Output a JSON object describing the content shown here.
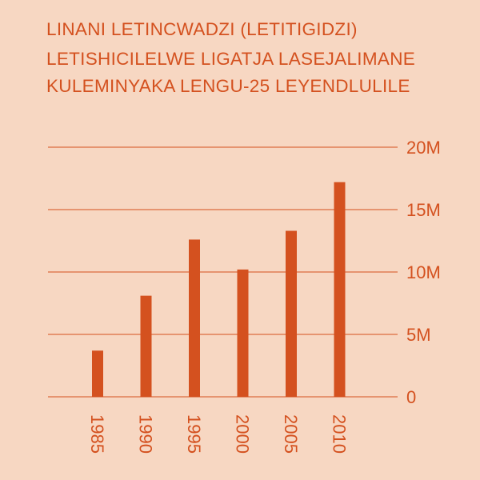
{
  "chart_data": {
    "type": "bar",
    "title_lines": [
      "LINANI LETINCWADZI (LETITIGIDZI)",
      "LETISHICILELWE LIGATJA LASEJALIMANE",
      "KULEMINYAKA LENGU-25 LEYENDLULILE"
    ],
    "categories": [
      "1985",
      "1990",
      "1995",
      "2000",
      "2005",
      "2010"
    ],
    "values": [
      3.7,
      8.1,
      12.6,
      10.2,
      13.3,
      17.2
    ],
    "ylim": [
      0,
      20
    ],
    "y_ticks": [
      0,
      5,
      10,
      15,
      20
    ],
    "y_tick_labels": [
      "0",
      "5M",
      "10M",
      "15M",
      "20M"
    ],
    "y_axis_position": "right",
    "x_tick_rotation": "vertical",
    "grid": true,
    "colors": {
      "bar": "#d4511f",
      "grid": "#d4511f",
      "text": "#d4511f",
      "background": "#f7d7c2"
    }
  }
}
